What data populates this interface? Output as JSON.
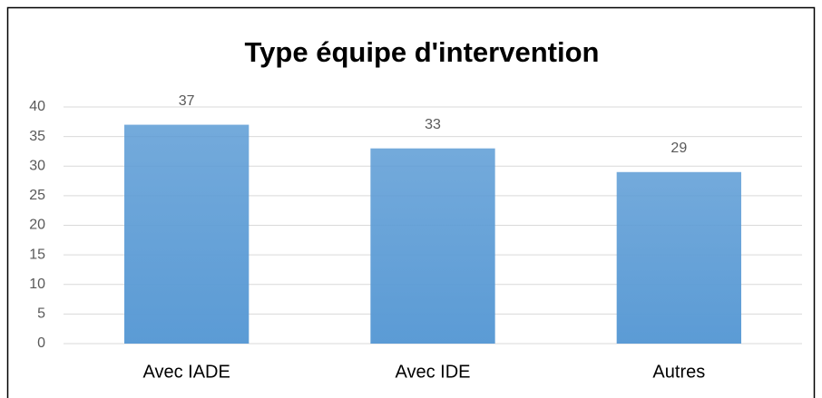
{
  "chart_data": {
    "type": "bar",
    "title": "Type équipe d'intervention",
    "categories": [
      "Avec IADE",
      "Avec IDE",
      "Autres"
    ],
    "values": [
      37,
      33,
      29
    ],
    "color": "#5b9bd5",
    "ylim": [
      0,
      40
    ],
    "yticks": [
      0,
      5,
      10,
      15,
      20,
      25,
      30,
      35,
      40
    ],
    "grid": true
  }
}
